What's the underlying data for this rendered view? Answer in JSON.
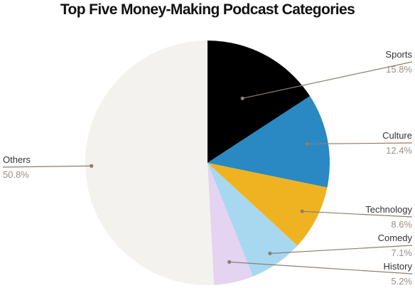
{
  "chart_data": {
    "type": "pie",
    "title": "Top Five Money-Making Podcast Categories",
    "slices": [
      {
        "name": "Sports",
        "value": 15.8,
        "label": "15.8%",
        "color": "#000000"
      },
      {
        "name": "Culture",
        "value": 12.4,
        "label": "12.4%",
        "color": "#2a88c2"
      },
      {
        "name": "Technology",
        "value": 8.6,
        "label": "8.6%",
        "color": "#efb321"
      },
      {
        "name": "Comedy",
        "value": 7.1,
        "label": "7.1%",
        "color": "#a8d8ef"
      },
      {
        "name": "History",
        "value": 5.2,
        "label": "5.2%",
        "color": "#e5d3f2"
      },
      {
        "name": "Others",
        "value": 50.8,
        "label": "50.8%",
        "color": "#f3f2ee"
      }
    ],
    "leader_color": "#8a7f72"
  }
}
